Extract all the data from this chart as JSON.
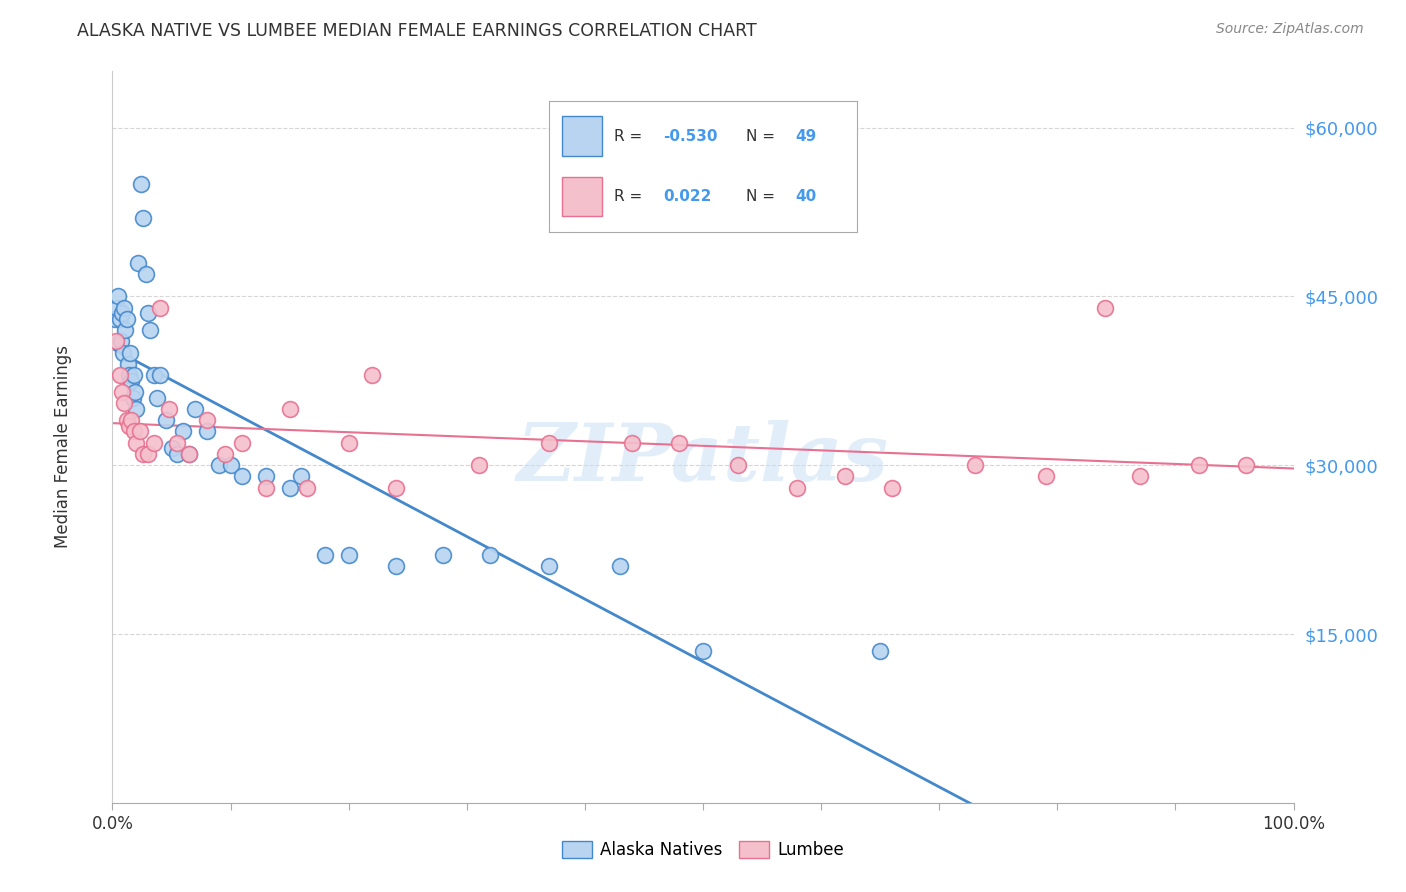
{
  "title": "ALASKA NATIVE VS LUMBEE MEDIAN FEMALE EARNINGS CORRELATION CHART",
  "source": "Source: ZipAtlas.com",
  "ylabel": "Median Female Earnings",
  "ytick_labels": [
    "$60,000",
    "$45,000",
    "$30,000",
    "$15,000"
  ],
  "ytick_values": [
    60000,
    45000,
    30000,
    15000
  ],
  "ylim": [
    0,
    65000
  ],
  "xlim": [
    0.0,
    1.0
  ],
  "alaska_color": "#b8d4f0",
  "alaska_color_line": "#4488cc",
  "lumbee_color": "#f4c0cc",
  "lumbee_color_line": "#e87090",
  "alaska_x": [
    0.002,
    0.004,
    0.005,
    0.006,
    0.007,
    0.008,
    0.009,
    0.01,
    0.011,
    0.012,
    0.013,
    0.014,
    0.015,
    0.016,
    0.017,
    0.018,
    0.019,
    0.02,
    0.022,
    0.024,
    0.026,
    0.028,
    0.03,
    0.032,
    0.035,
    0.038,
    0.04,
    0.045,
    0.05,
    0.055,
    0.06,
    0.065,
    0.07,
    0.08,
    0.09,
    0.1,
    0.11,
    0.13,
    0.15,
    0.16,
    0.18,
    0.2,
    0.24,
    0.28,
    0.32,
    0.37,
    0.43,
    0.5,
    0.65
  ],
  "alaska_y": [
    43000,
    44000,
    45000,
    43000,
    41000,
    43500,
    40000,
    44000,
    42000,
    43000,
    39000,
    38000,
    40000,
    37500,
    36000,
    38000,
    36500,
    35000,
    48000,
    55000,
    52000,
    47000,
    43500,
    42000,
    38000,
    36000,
    38000,
    34000,
    31500,
    31000,
    33000,
    31000,
    35000,
    33000,
    30000,
    30000,
    29000,
    29000,
    28000,
    29000,
    22000,
    22000,
    21000,
    22000,
    22000,
    21000,
    21000,
    13500,
    13500
  ],
  "lumbee_x": [
    0.003,
    0.006,
    0.008,
    0.01,
    0.012,
    0.014,
    0.016,
    0.018,
    0.02,
    0.023,
    0.026,
    0.03,
    0.035,
    0.04,
    0.048,
    0.055,
    0.065,
    0.08,
    0.095,
    0.11,
    0.13,
    0.15,
    0.165,
    0.2,
    0.22,
    0.24,
    0.31,
    0.37,
    0.44,
    0.48,
    0.53,
    0.58,
    0.62,
    0.66,
    0.73,
    0.79,
    0.84,
    0.87,
    0.92,
    0.96
  ],
  "lumbee_y": [
    41000,
    38000,
    36500,
    35500,
    34000,
    33500,
    34000,
    33000,
    32000,
    33000,
    31000,
    31000,
    32000,
    44000,
    35000,
    32000,
    31000,
    34000,
    31000,
    32000,
    28000,
    35000,
    28000,
    32000,
    38000,
    28000,
    30000,
    32000,
    32000,
    32000,
    30000,
    28000,
    29000,
    28000,
    30000,
    29000,
    44000,
    29000,
    30000,
    30000
  ],
  "watermark": "ZIPatlas",
  "background_color": "#ffffff",
  "grid_color": "#cccccc",
  "tick_color_y": "#4499ee",
  "tick_color_x": "#333333",
  "legend_alaska_R": "-0.530",
  "legend_alaska_N": "49",
  "legend_lumbee_R": "0.022",
  "legend_lumbee_N": "40"
}
